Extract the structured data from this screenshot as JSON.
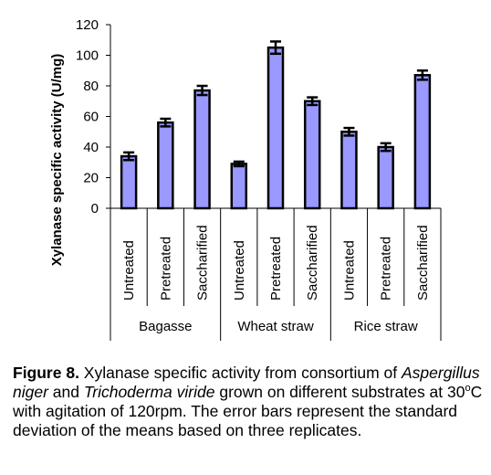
{
  "chart_data": {
    "type": "bar",
    "ylabel": "Xylanase specific activity (U/mg)",
    "ylim": [
      0,
      120
    ],
    "yticks": [
      "0",
      "20",
      "40",
      "60",
      "80",
      "100",
      "120"
    ],
    "grid": false,
    "bar_color": "#9999ff",
    "groups": [
      {
        "name": "Bagasse",
        "categories": [
          "Untreated",
          "Pretreated",
          "Saccharified"
        ]
      },
      {
        "name": "Wheat straw",
        "categories": [
          "Untreated",
          "Pretreated",
          "Saccharified"
        ]
      },
      {
        "name": "Rice straw",
        "categories": [
          "Untreated",
          "Pretreated",
          "Saccharified"
        ]
      }
    ],
    "values": [
      34,
      56,
      77,
      29,
      105,
      70,
      50,
      40,
      87
    ],
    "errors": [
      2.5,
      2.5,
      3,
      1.5,
      4,
      2.5,
      2.5,
      2.5,
      3
    ]
  },
  "caption": {
    "label": "Figure 8.",
    "t1": " Xylanase specific activity from consortium of ",
    "species1": "Aspergillus niger",
    "t2": " and ",
    "species2": "Trichoderma viride",
    "t3": " grown on different substrates at 30",
    "degree": "o",
    "t4": "C with agitation of 120rpm. The error bars represent the standard deviation of the means based on three replicates."
  }
}
